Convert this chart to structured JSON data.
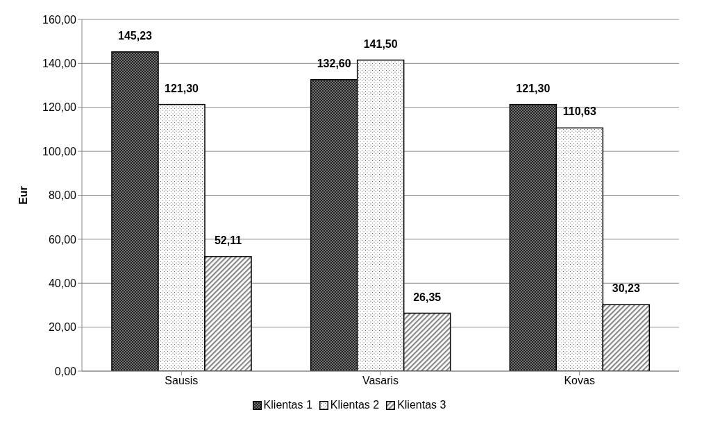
{
  "chart_data": {
    "type": "bar",
    "ylabel": "Eur",
    "categories": [
      "Sausis",
      "Vasaris",
      "Kovas"
    ],
    "series": [
      {
        "name": "Klientas 1",
        "color": "#222222",
        "values": [
          145.23,
          132.6,
          121.3
        ],
        "value_labels": [
          "145,23",
          "132,60",
          "121,30"
        ]
      },
      {
        "name": "Klientas 2",
        "color": "#ffffff",
        "values": [
          121.3,
          141.5,
          110.63
        ],
        "value_labels": [
          "121,30",
          "141,50",
          "110,63"
        ]
      },
      {
        "name": "Klientas 3",
        "color": "#888888",
        "values": [
          52.11,
          26.35,
          30.23
        ],
        "value_labels": [
          "52,11",
          "26,35",
          "30,23"
        ]
      }
    ],
    "ylim": [
      0,
      160
    ],
    "yticks": [
      {
        "value": 0,
        "label": "0,00"
      },
      {
        "value": 20,
        "label": "20,00"
      },
      {
        "value": 40,
        "label": "40,00"
      },
      {
        "value": 60,
        "label": "60,00"
      },
      {
        "value": 80,
        "label": "80,00"
      },
      {
        "value": 100,
        "label": "100,00"
      },
      {
        "value": 120,
        "label": "120,00"
      },
      {
        "value": 140,
        "label": "140,00"
      },
      {
        "value": 160,
        "label": "160,00"
      }
    ],
    "grid": "y",
    "legend": "bottom"
  }
}
